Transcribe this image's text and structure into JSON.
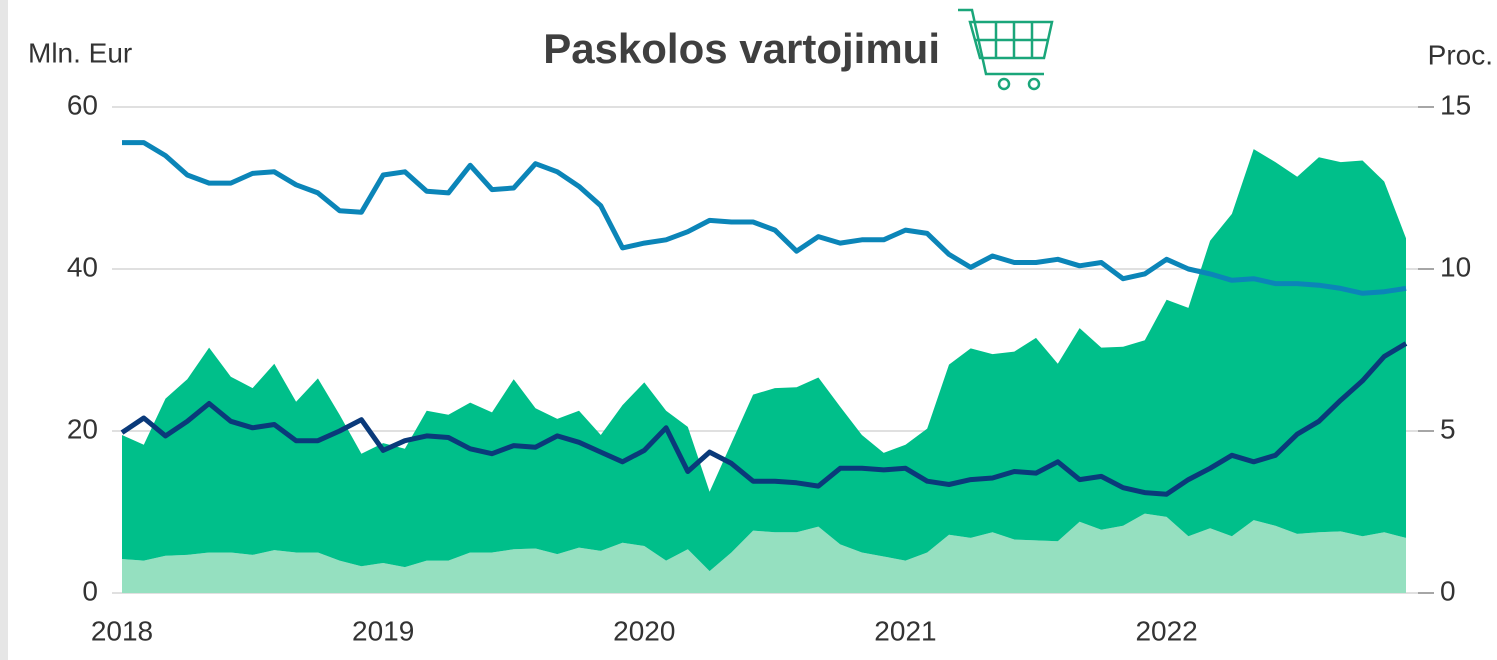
{
  "chart_data": {
    "type": "area",
    "title": "Paskolos vartojimui",
    "y_label": "Mln. Eur",
    "y2_label": "Proc.",
    "categories": [
      "2018",
      null,
      null,
      null,
      null,
      null,
      null,
      null,
      null,
      null,
      null,
      null,
      "2019",
      null,
      null,
      null,
      null,
      null,
      null,
      null,
      null,
      null,
      null,
      null,
      "2020",
      null,
      null,
      null,
      null,
      null,
      null,
      null,
      null,
      null,
      null,
      null,
      "2021",
      null,
      null,
      null,
      null,
      null,
      null,
      null,
      null,
      null,
      null,
      null,
      "2022",
      null,
      null,
      null,
      null,
      null,
      null,
      null,
      null,
      null,
      null,
      null
    ],
    "ylim": [
      0,
      60
    ],
    "yticks": [
      0,
      20,
      40,
      60
    ],
    "y2lim": [
      0,
      15
    ],
    "y2ticks": [
      0,
      5,
      10,
      15
    ],
    "grid": true,
    "stacked": true,
    "series": [
      {
        "type": "area",
        "color": "#95e0c0",
        "values": [
          4.2,
          4,
          4.6,
          4.7,
          5,
          5,
          4.7,
          5.3,
          5,
          5,
          4,
          3.3,
          3.7,
          3.2,
          4,
          4,
          5,
          5,
          5.4,
          5.5,
          4.8,
          5.6,
          5.2,
          6.2,
          5.8,
          4,
          5.4,
          2.7,
          5,
          7.7,
          7.5,
          7.5,
          8.2,
          6,
          5,
          4.5,
          4,
          5,
          7.2,
          6.8,
          7.5,
          6.6,
          6.5,
          6.4,
          8.8,
          7.8,
          8.3,
          9.8,
          9.4,
          7,
          8,
          7,
          9,
          8.3,
          7.3,
          7.5,
          7.6,
          7,
          7.5,
          6.8
        ]
      },
      {
        "type": "area",
        "color": "#00bf8a",
        "values": [
          15.3,
          14.3,
          19.4,
          21.7,
          25.3,
          21.7,
          20.6,
          23,
          18.6,
          21.5,
          18,
          13.9,
          14.8,
          14.6,
          18.5,
          18,
          18.5,
          17.3,
          21,
          17.3,
          16.7,
          16.9,
          14.3,
          17,
          20.2,
          18.5,
          15.1,
          9.8,
          13.5,
          16.8,
          17.8,
          17.9,
          18.4,
          17,
          14.5,
          12.8,
          14.3,
          15.3,
          21,
          23.4,
          22,
          23.2,
          25,
          21.9,
          23.9,
          22.5,
          22.1,
          21.4,
          26.8,
          28.2,
          35.5,
          39.8,
          45.8,
          44.9,
          44.1,
          46.3,
          45.6,
          46.4,
          43.3,
          37
        ]
      },
      {
        "type": "line",
        "axis": "y2",
        "color": "#0b85b8",
        "values": [
          13.9,
          13.9,
          13.5,
          12.9,
          12.65,
          12.65,
          12.95,
          13,
          12.6,
          12.35,
          11.8,
          11.75,
          12.9,
          13,
          12.4,
          12.35,
          13.2,
          12.45,
          12.5,
          13.25,
          13,
          12.55,
          11.95,
          10.65,
          10.8,
          10.9,
          11.15,
          11.5,
          11.45,
          11.45,
          11.2,
          10.55,
          11,
          10.8,
          10.9,
          10.9,
          11.2,
          11.1,
          10.45,
          10.05,
          10.4,
          10.2,
          10.2,
          10.3,
          10.1,
          10.2,
          9.7,
          9.85,
          10.3,
          10,
          9.85,
          9.65,
          9.7,
          9.55,
          9.55,
          9.5,
          9.4,
          9.25,
          9.3,
          9.4
        ]
      },
      {
        "type": "line",
        "axis": "y2",
        "color": "#0a3a7a",
        "values": [
          4.95,
          5.4,
          4.85,
          5.3,
          5.85,
          5.3,
          5.1,
          5.2,
          4.7,
          4.7,
          5,
          5.35,
          4.4,
          4.7,
          4.85,
          4.8,
          4.45,
          4.3,
          4.55,
          4.5,
          4.85,
          4.65,
          4.35,
          4.05,
          4.4,
          5.1,
          3.75,
          4.35,
          4,
          3.45,
          3.45,
          3.4,
          3.3,
          3.85,
          3.85,
          3.8,
          3.85,
          3.45,
          3.35,
          3.5,
          3.55,
          3.75,
          3.7,
          4.05,
          3.5,
          3.6,
          3.25,
          3.1,
          3.05,
          3.5,
          3.85,
          4.25,
          4.05,
          4.25,
          4.9,
          5.3,
          5.95,
          6.55,
          7.3,
          7.7
        ]
      }
    ]
  }
}
